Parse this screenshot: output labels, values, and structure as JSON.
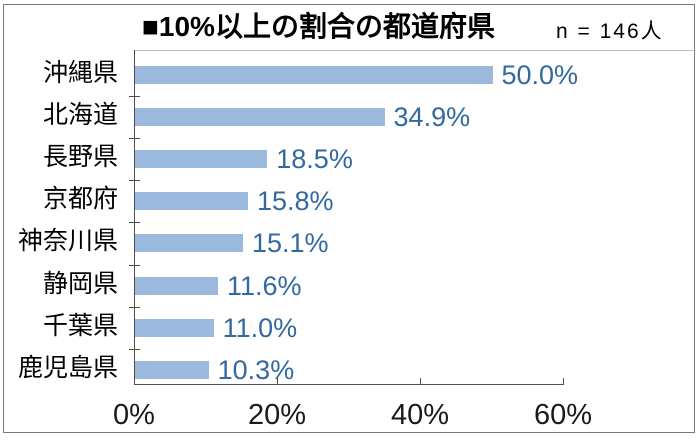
{
  "header": {
    "title": "■10%以上の割合の都道府県",
    "sample_size_note": "n = 146人"
  },
  "chart_data": {
    "type": "bar",
    "orientation": "horizontal",
    "title": "■10%以上の割合の都道府県",
    "annotation": "n = 146人",
    "categories": [
      "沖縄県",
      "北海道",
      "長野県",
      "京都府",
      "神奈川県",
      "静岡県",
      "千葉県",
      "鹿児島県"
    ],
    "values": [
      50.0,
      34.9,
      18.5,
      15.8,
      15.1,
      11.6,
      11.0,
      10.3
    ],
    "value_labels": [
      "50.0%",
      "34.9%",
      "18.5%",
      "15.8%",
      "15.1%",
      "11.6%",
      "11.0%",
      "10.3%"
    ],
    "xlabel": "",
    "ylabel": "",
    "xlim": [
      0,
      60
    ],
    "x_ticks": [
      0,
      20,
      40,
      60
    ],
    "x_tick_labels": [
      "0%",
      "20%",
      "40%",
      "60%"
    ],
    "grid": false,
    "legend": false,
    "colors": {
      "bar": "#9bb8dd",
      "value_label": "#33699e",
      "axis": "#4d4d4d",
      "frame": "#7a7a7a",
      "title_text": "#000000"
    }
  }
}
